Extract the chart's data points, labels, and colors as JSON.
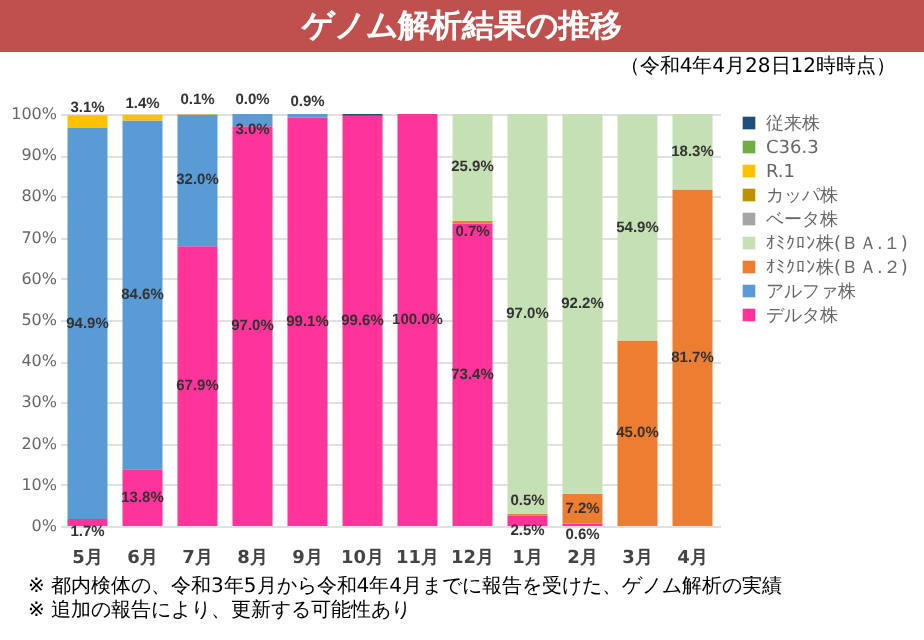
{
  "chart_data": {
    "type": "bar",
    "title": "ゲノム解析結果の推移",
    "subtitle": "（令和4年4月28日12時時点）",
    "stacked": true,
    "grid": "y",
    "legend": "right",
    "categories": [
      "5月",
      "6月",
      "7月",
      "8月",
      "9月",
      "10月",
      "11月",
      "12月",
      "1月",
      "2月",
      "3月",
      "4月"
    ],
    "ylim": [
      0,
      100
    ],
    "yticks": [
      {
        "value": 0,
        "label": "0%"
      },
      {
        "value": 10,
        "label": "10%"
      },
      {
        "value": 20,
        "label": "20%"
      },
      {
        "value": 30,
        "label": "30%"
      },
      {
        "value": 40,
        "label": "40%"
      },
      {
        "value": 50,
        "label": "50%"
      },
      {
        "value": 60,
        "label": "60%"
      },
      {
        "value": 70,
        "label": "70%"
      },
      {
        "value": 80,
        "label": "80%"
      },
      {
        "value": 90,
        "label": "90%"
      },
      {
        "value": 100,
        "label": "100%"
      }
    ],
    "series": [
      {
        "name": "デルタ株",
        "color": "#ff3399",
        "values": [
          1.7,
          13.8,
          67.9,
          97.0,
          99.1,
          99.6,
          100.0,
          73.4,
          2.5,
          0.6,
          null,
          null
        ],
        "value_labels": [
          "1.7%",
          "13.8%",
          "67.9%",
          "97.0%",
          "99.1%",
          "99.6%",
          "100.0%",
          "73.4%",
          "2.5%",
          "0.6%",
          null,
          null
        ]
      },
      {
        "name": "アルファ株",
        "color": "#5b9bd5",
        "values": [
          94.9,
          84.6,
          32.0,
          3.0,
          0.9,
          null,
          null,
          null,
          null,
          null,
          null,
          null
        ],
        "value_labels": [
          "94.9%",
          "84.6%",
          "32.0%",
          "3.0%",
          "0.9%",
          null,
          null,
          null,
          null,
          null,
          null,
          null
        ]
      },
      {
        "name": "ｵﾐｸﾛﾝ株(ＢＡ.２)",
        "color": "#ed7d31",
        "values": [
          null,
          null,
          null,
          null,
          null,
          null,
          null,
          0.7,
          0.5,
          7.2,
          45.0,
          81.7
        ],
        "value_labels": [
          null,
          null,
          null,
          null,
          null,
          null,
          null,
          "0.7%",
          "0.5%",
          "7.2%",
          "45.0%",
          "81.7%"
        ]
      },
      {
        "name": "ｵﾐｸﾛﾝ株(ＢＡ.１)",
        "color": "#c5e0b4",
        "values": [
          null,
          null,
          null,
          null,
          null,
          null,
          null,
          25.9,
          97.0,
          92.2,
          54.9,
          18.3
        ],
        "value_labels": [
          null,
          null,
          null,
          null,
          null,
          null,
          null,
          "25.9%",
          "97.0%",
          "92.2%",
          "54.9%",
          "18.3%"
        ]
      },
      {
        "name": "ベータ株",
        "color": "#a5a5a5",
        "values": [
          null,
          null,
          null,
          null,
          null,
          null,
          null,
          null,
          null,
          null,
          null,
          null
        ]
      },
      {
        "name": "カッパ株",
        "color": "#bf9000",
        "values": [
          null,
          null,
          null,
          null,
          null,
          null,
          null,
          null,
          null,
          null,
          null,
          null
        ]
      },
      {
        "name": "R.1",
        "color": "#ffc000",
        "values": [
          3.1,
          1.4,
          0.1,
          0.0,
          null,
          null,
          null,
          null,
          null,
          null,
          null,
          null
        ],
        "value_labels": [
          "3.1%",
          "1.4%",
          "0.1%",
          "0.0%",
          null,
          null,
          null,
          null,
          null,
          null,
          null,
          null
        ]
      },
      {
        "name": "C36.3",
        "color": "#70ad47",
        "values": [
          null,
          null,
          null,
          null,
          null,
          null,
          null,
          null,
          null,
          null,
          null,
          null
        ]
      },
      {
        "name": "従来株",
        "color": "#1f4e79",
        "values": [
          null,
          null,
          null,
          null,
          null,
          0.4,
          null,
          null,
          null,
          null,
          null,
          null
        ]
      }
    ],
    "annotations": [
      "※ 都内検体の、令和3年5月から令和4年4月までに報告を受けた、ゲノム解析の実績",
      "※ 追加の報告により、更新する可能性あり"
    ]
  }
}
